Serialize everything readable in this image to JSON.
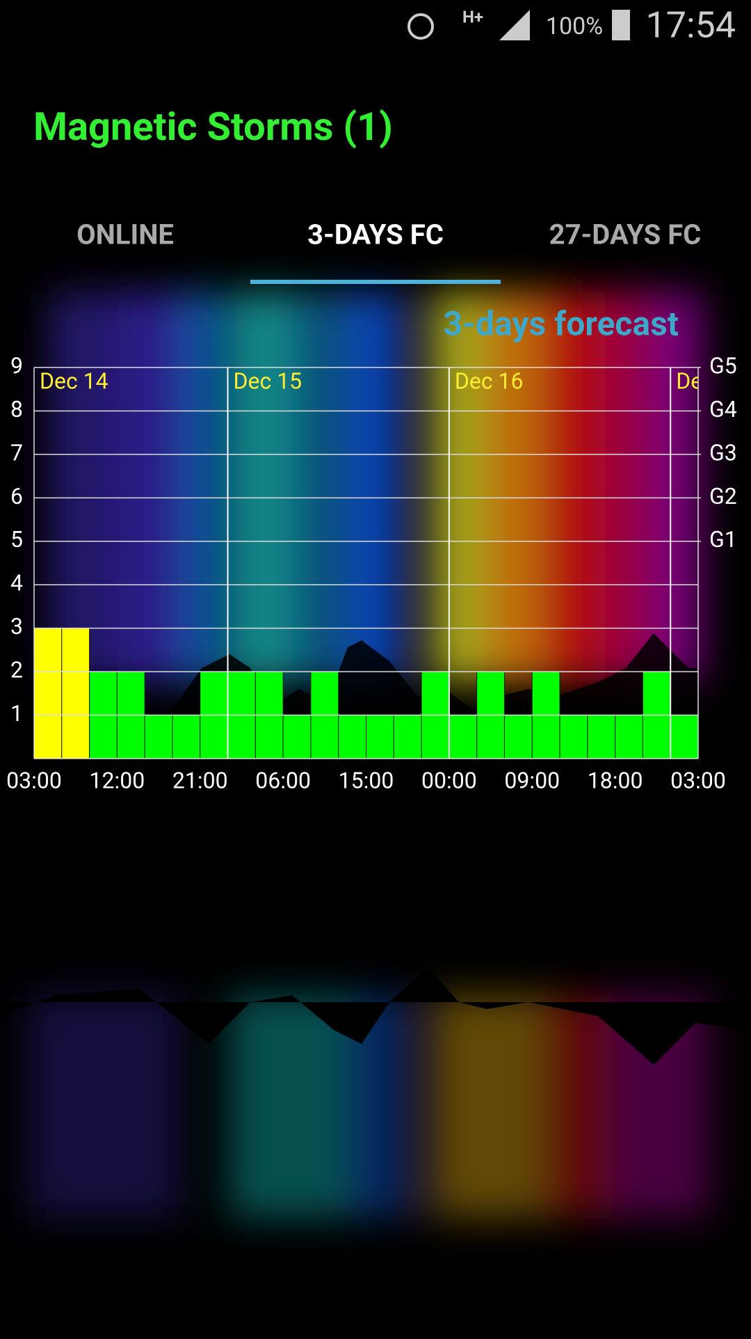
{
  "status_bar": {
    "network": "H+",
    "battery": "100%",
    "time": "17:54"
  },
  "app_title": "Magnetic Storms (1)",
  "tabs": [
    "ONLINE",
    "3-DAYS FC",
    "27-DAYS FC"
  ],
  "active_tab": 1,
  "chart_data": {
    "type": "bar",
    "title": "3-days forecast",
    "categories": [
      "03:00",
      null,
      null,
      "12:00",
      null,
      null,
      "21:00",
      null,
      null,
      "06:00",
      null,
      null,
      "15:00",
      null,
      null,
      "00:00",
      null,
      null,
      "09:00",
      null,
      null,
      "18:00",
      null,
      null
    ],
    "x_end_label": "03:00",
    "values": [
      3,
      3,
      2,
      2,
      1,
      1,
      2,
      2,
      2,
      1,
      2,
      1,
      1,
      1,
      2,
      1,
      2,
      1,
      2,
      1,
      1,
      1,
      2,
      1
    ],
    "colors": [
      "#ffff00",
      "#ffff00",
      "#00ff00",
      "#00ff00",
      "#00ff00",
      "#00ff00",
      "#00ff00",
      "#00ff00",
      "#00ff00",
      "#00ff00",
      "#00ff00",
      "#00ff00",
      "#00ff00",
      "#00ff00",
      "#00ff00",
      "#00ff00",
      "#00ff00",
      "#00ff00",
      "#00ff00",
      "#00ff00",
      "#00ff00",
      "#00ff00",
      "#00ff00",
      "#00ff00"
    ],
    "days": [
      {
        "label": "Dec 14",
        "start": 0
      },
      {
        "label": "Dec 15",
        "start": 7
      },
      {
        "label": "Dec 16",
        "start": 15
      },
      {
        "label": "De",
        "start": 23
      }
    ],
    "ylim": [
      0,
      9
    ],
    "yticks": [
      1,
      2,
      3,
      4,
      5,
      6,
      7,
      8,
      9
    ],
    "y2lim": [
      0,
      9
    ],
    "y2ticks": [
      {
        "value": 5,
        "label": "G1"
      },
      {
        "value": 6,
        "label": "G2"
      },
      {
        "value": 7,
        "label": "G3"
      },
      {
        "value": 8,
        "label": "G4"
      },
      {
        "value": 9,
        "label": "G5"
      }
    ],
    "grid": true
  }
}
